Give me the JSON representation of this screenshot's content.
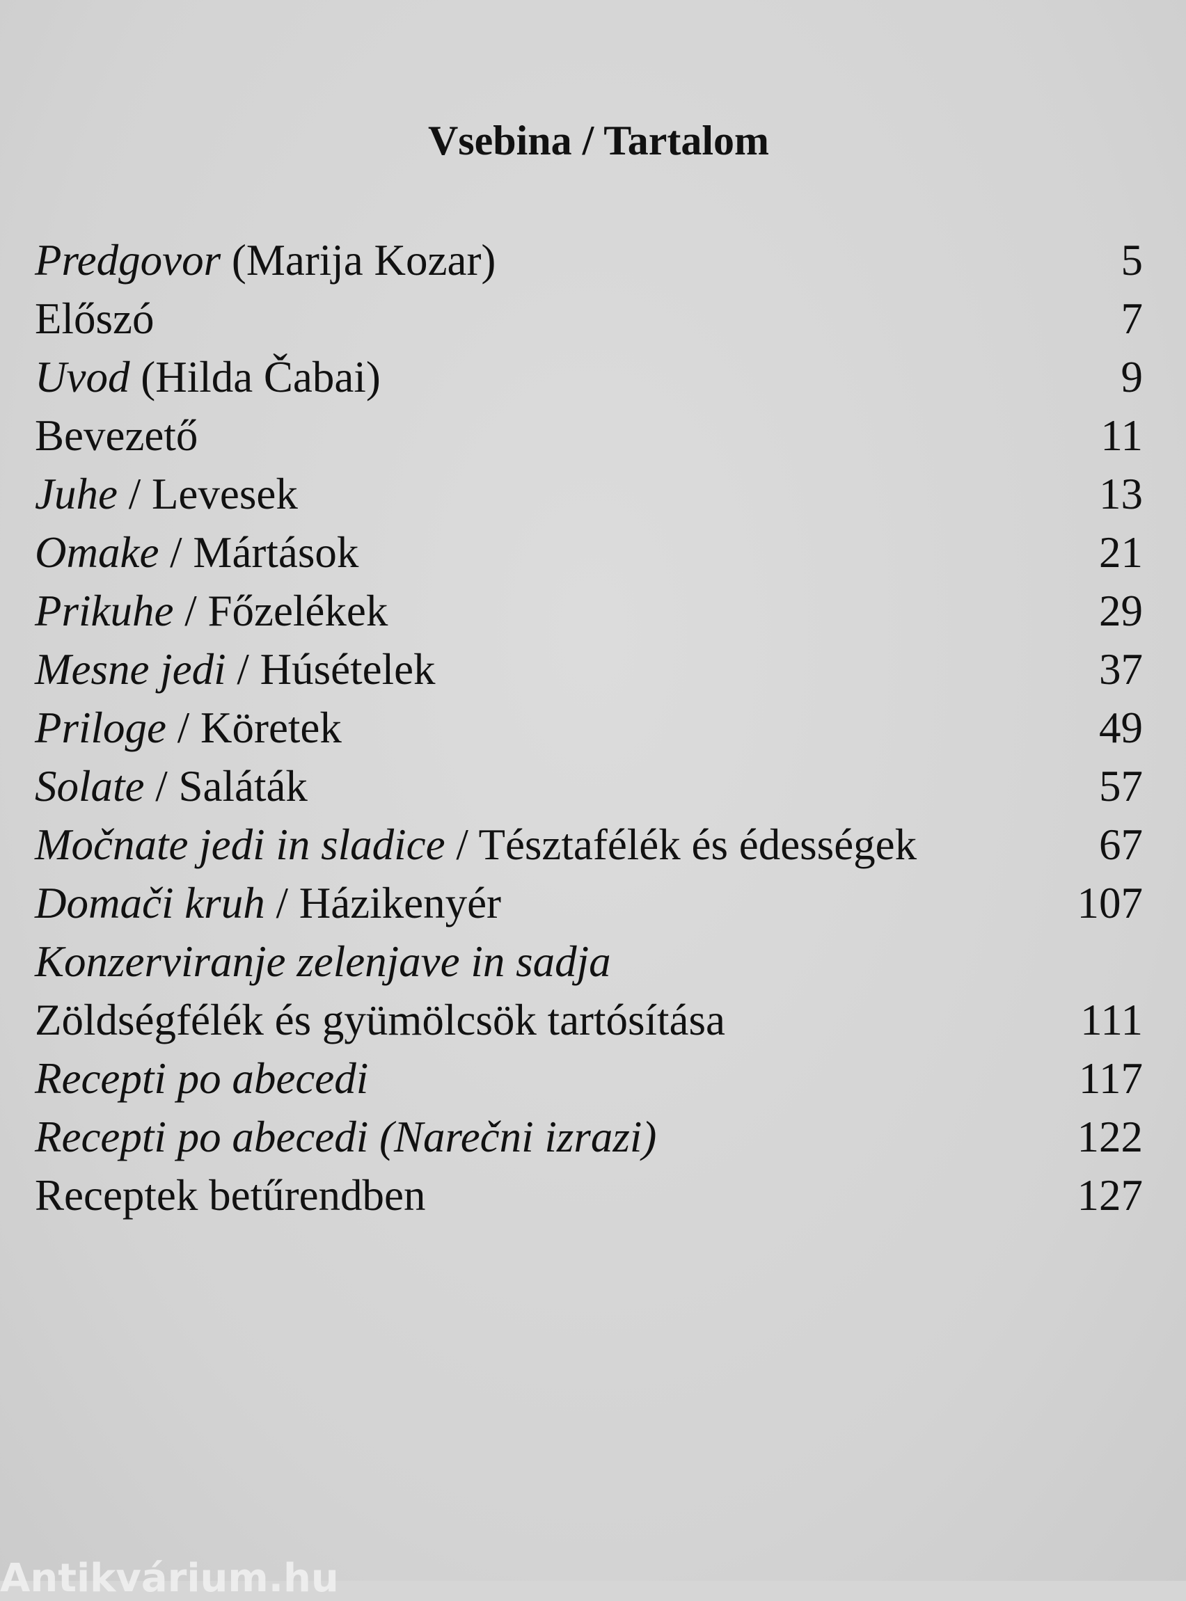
{
  "title": "Vsebina / Tartalom",
  "entries": [
    {
      "italic": "Predgovor",
      "plain": " (Marija Kozar)",
      "page": "5"
    },
    {
      "italic": "",
      "plain": "Előszó",
      "page": "7"
    },
    {
      "italic": "Uvod",
      "plain": " (Hilda Čabai)",
      "page": "9"
    },
    {
      "italic": "",
      "plain": "Bevezető",
      "page": "11"
    },
    {
      "italic": "Juhe",
      "plain": " / Levesek",
      "page": "13"
    },
    {
      "italic": "Omake",
      "plain": " / Mártások",
      "page": "21"
    },
    {
      "italic": "Prikuhe",
      "plain": " / Főzelékek",
      "page": "29"
    },
    {
      "italic": "Mesne jedi",
      "plain": " / Húsételek",
      "page": "37"
    },
    {
      "italic": "Priloge",
      "plain": " / Köretek",
      "page": "49"
    },
    {
      "italic": "Solate",
      "plain": " / Saláták",
      "page": "57"
    },
    {
      "italic": "Močnate jedi in sladice",
      "plain": " / Tésztafélék és édességek",
      "page": "67"
    },
    {
      "italic": "Domači kruh",
      "plain": " / Házikenyér",
      "page": "107"
    },
    {
      "italic": "Konzerviranje zelenjave in sadja",
      "plain": "",
      "page": ""
    },
    {
      "italic": "",
      "plain": "Zöldségfélék és gyümölcsök tartósítása",
      "page": "111"
    },
    {
      "italic": "Recepti po abecedi",
      "plain": "",
      "page": "117"
    },
    {
      "italic": "Recepti po abecedi (Narečni izrazi)",
      "plain": "",
      "page": "122"
    },
    {
      "italic": "",
      "plain": "Receptek betűrendben",
      "page": "127"
    }
  ],
  "watermark": "Antikvárium.hu"
}
